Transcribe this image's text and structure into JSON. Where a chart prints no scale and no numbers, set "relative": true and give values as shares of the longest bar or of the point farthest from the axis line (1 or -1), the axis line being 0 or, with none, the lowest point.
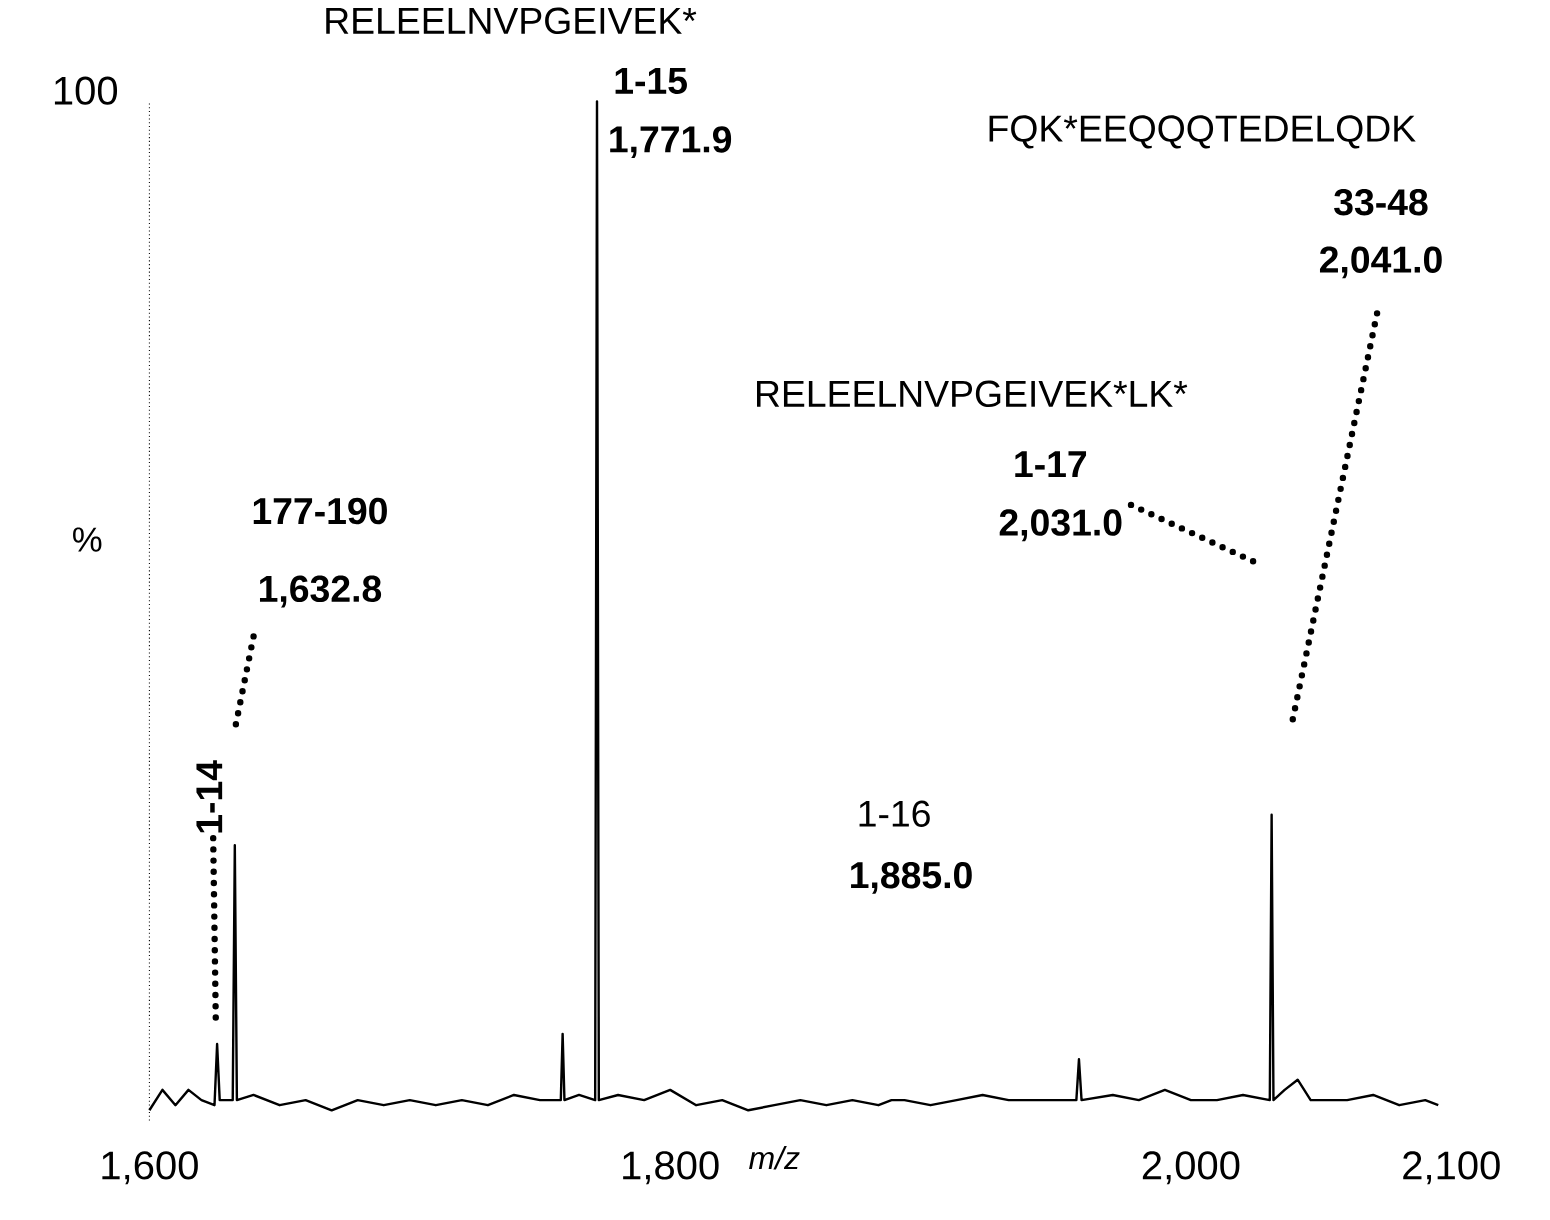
{
  "chart_data": {
    "type": "line",
    "relative": true,
    "color": "#000000",
    "xlabel": "m/z",
    "ylabel": "%",
    "xlim": [
      1600,
      2100
    ],
    "xticks": [
      {
        "value": 1600,
        "label": "1,600"
      },
      {
        "value": 1800,
        "label": "1,800"
      },
      {
        "value": 2000,
        "label": "2,000"
      },
      {
        "value": 2100,
        "label": "2,100"
      }
    ],
    "x": [
      1600,
      1605,
      1610,
      1615,
      1620,
      1625,
      1626,
      1627,
      1632,
      1632.8,
      1633.6,
      1640,
      1650,
      1660,
      1670,
      1680,
      1690,
      1700,
      1710,
      1720,
      1730,
      1740,
      1750,
      1758,
      1758.7,
      1759.4,
      1765,
      1771.2,
      1771.9,
      1772.6,
      1780,
      1790,
      1800,
      1810,
      1820,
      1830,
      1840,
      1850,
      1860,
      1870,
      1880,
      1885,
      1890,
      1900,
      1910,
      1920,
      1930,
      1940,
      1950,
      1956,
      1957,
      1958,
      1970,
      1980,
      1990,
      2000,
      2010,
      2020,
      2030.3,
      2031,
      2031.7,
      2036,
      2041,
      2046,
      2060,
      2070,
      2080,
      2090,
      2095
    ],
    "values": [
      0.01,
      0.03,
      0.015,
      0.03,
      0.02,
      0.015,
      0.075,
      0.02,
      0.02,
      0.27,
      0.02,
      0.025,
      0.015,
      0.02,
      0.01,
      0.02,
      0.015,
      0.02,
      0.015,
      0.02,
      0.015,
      0.025,
      0.02,
      0.02,
      0.085,
      0.02,
      0.025,
      0.02,
      1,
      0.02,
      0.025,
      0.02,
      0.03,
      0.015,
      0.02,
      0.01,
      0.015,
      0.02,
      0.015,
      0.02,
      0.015,
      0.02,
      0.02,
      0.015,
      0.02,
      0.025,
      0.02,
      0.02,
      0.02,
      0.02,
      0.06,
      0.02,
      0.025,
      0.02,
      0.03,
      0.02,
      0.02,
      0.025,
      0.02,
      0.3,
      0.02,
      0.03,
      0.04,
      0.02,
      0.02,
      0.025,
      0.015,
      0.02,
      0.015
    ],
    "annotations": [
      "100",
      "RELEELNVPGEIVEK*",
      "1-15",
      "1,771.9",
      "FQK*EEQQQTEDELQDK",
      "33-48",
      "2,041.0",
      "RELEELNVPGEIVEK*LK*",
      "1-17",
      "2,031.0",
      "177-190",
      "1,632.8",
      "1-14",
      "1-16",
      "1,885.0"
    ]
  }
}
